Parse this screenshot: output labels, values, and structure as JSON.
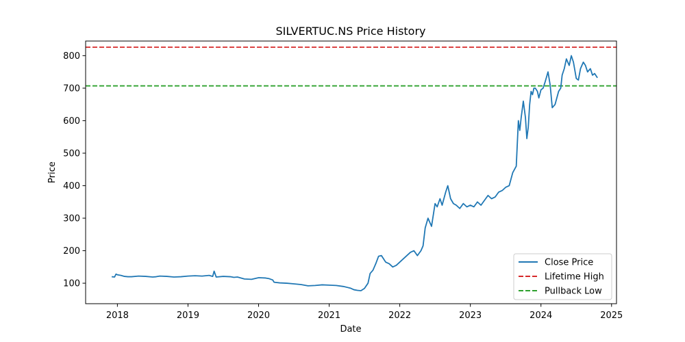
{
  "chart_data": {
    "type": "line",
    "title": "SILVERTUC.NS Price History",
    "xlabel": "Date",
    "ylabel": "Price",
    "xlim": [
      2017.55,
      2025.07
    ],
    "ylim": [
      37,
      845
    ],
    "x_ticks": [
      {
        "value": 2018,
        "label": "2018"
      },
      {
        "value": 2019,
        "label": "2019"
      },
      {
        "value": 2020,
        "label": "2020"
      },
      {
        "value": 2021,
        "label": "2021"
      },
      {
        "value": 2022,
        "label": "2022"
      },
      {
        "value": 2023,
        "label": "2023"
      },
      {
        "value": 2024,
        "label": "2024"
      },
      {
        "value": 2025,
        "label": "2025"
      }
    ],
    "y_ticks": [
      {
        "value": 100,
        "label": "100"
      },
      {
        "value": 200,
        "label": "200"
      },
      {
        "value": 300,
        "label": "300"
      },
      {
        "value": 400,
        "label": "400"
      },
      {
        "value": 500,
        "label": "500"
      },
      {
        "value": 600,
        "label": "600"
      },
      {
        "value": 700,
        "label": "700"
      },
      {
        "value": 800,
        "label": "800"
      }
    ],
    "grid": false,
    "legend_position": "lower-right",
    "series": [
      {
        "name": "Close Price",
        "color": "#1f77b4",
        "style": "solid",
        "x": [
          2017.92,
          2017.96,
          2017.98,
          2018.0,
          2018.05,
          2018.1,
          2018.15,
          2018.2,
          2018.3,
          2018.4,
          2018.5,
          2018.55,
          2018.6,
          2018.7,
          2018.8,
          2018.9,
          2019.0,
          2019.1,
          2019.2,
          2019.3,
          2019.35,
          2019.37,
          2019.4,
          2019.5,
          2019.6,
          2019.65,
          2019.7,
          2019.8,
          2019.9,
          2020.0,
          2020.1,
          2020.15,
          2020.2,
          2020.22,
          2020.3,
          2020.4,
          2020.5,
          2020.6,
          2020.7,
          2020.8,
          2020.9,
          2021.0,
          2021.1,
          2021.2,
          2021.3,
          2021.35,
          2021.4,
          2021.45,
          2021.5,
          2021.55,
          2021.58,
          2021.62,
          2021.66,
          2021.7,
          2021.74,
          2021.8,
          2021.85,
          2021.9,
          2021.95,
          2022.0,
          2022.05,
          2022.1,
          2022.15,
          2022.2,
          2022.25,
          2022.3,
          2022.33,
          2022.36,
          2022.4,
          2022.45,
          2022.5,
          2022.53,
          2022.57,
          2022.6,
          2022.65,
          2022.68,
          2022.72,
          2022.76,
          2022.8,
          2022.85,
          2022.9,
          2022.95,
          2023.0,
          2023.05,
          2023.1,
          2023.15,
          2023.2,
          2023.25,
          2023.3,
          2023.35,
          2023.4,
          2023.45,
          2023.5,
          2023.55,
          2023.6,
          2023.65,
          2023.68,
          2023.7,
          2023.72,
          2023.75,
          2023.78,
          2023.8,
          2023.82,
          2023.84,
          2023.86,
          2023.88,
          2023.9,
          2023.92,
          2023.95,
          2023.97,
          2024.0,
          2024.03,
          2024.06,
          2024.1,
          2024.13,
          2024.16,
          2024.2,
          2024.25,
          2024.28,
          2024.3,
          2024.33,
          2024.36,
          2024.4,
          2024.43,
          2024.46,
          2024.5,
          2024.53,
          2024.56,
          2024.6,
          2024.63,
          2024.66,
          2024.7,
          2024.73,
          2024.76,
          2024.8
        ],
        "values": [
          120,
          119,
          128,
          126,
          124,
          121,
          120,
          120,
          122,
          121,
          119,
          120,
          122,
          121,
          119,
          120,
          122,
          123,
          122,
          124,
          121,
          137,
          119,
          121,
          120,
          118,
          119,
          113,
          112,
          117,
          116,
          114,
          110,
          103,
          101,
          100,
          98,
          96,
          92,
          93,
          95,
          94,
          93,
          90,
          85,
          80,
          78,
          77,
          84,
          100,
          130,
          140,
          160,
          183,
          185,
          165,
          160,
          150,
          155,
          165,
          175,
          185,
          195,
          200,
          185,
          200,
          215,
          270,
          300,
          275,
          345,
          335,
          360,
          340,
          380,
          400,
          360,
          345,
          340,
          330,
          345,
          335,
          340,
          335,
          350,
          340,
          355,
          370,
          360,
          365,
          380,
          385,
          395,
          400,
          440,
          460,
          600,
          570,
          610,
          660,
          610,
          545,
          580,
          650,
          690,
          680,
          700,
          700,
          690,
          670,
          695,
          700,
          720,
          750,
          710,
          640,
          650,
          690,
          700,
          740,
          760,
          790,
          770,
          800,
          780,
          730,
          725,
          760,
          780,
          770,
          750,
          760,
          740,
          745,
          732
        ]
      }
    ],
    "reference_lines": [
      {
        "name": "Lifetime High",
        "value": 826,
        "color": "#d62728",
        "style": "dashed"
      },
      {
        "name": "Pullback Low",
        "value": 707,
        "color": "#2ca02c",
        "style": "dashed"
      }
    ],
    "legend_entries": [
      "Close Price",
      "Lifetime High",
      "Pullback Low"
    ]
  }
}
